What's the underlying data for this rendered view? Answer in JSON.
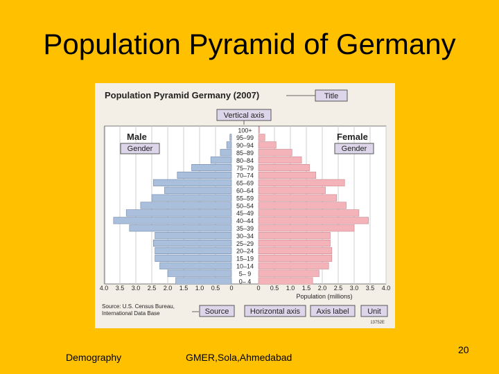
{
  "slide": {
    "title": "Population Pyramid of Germany",
    "footer_left": "Demography",
    "footer_center": "GMER,Sola,Ahmedabad",
    "page_number": "20"
  },
  "colors": {
    "background": "#FFC000",
    "male_bar": "#a9bfdc",
    "female_bar": "#f4b3b8",
    "callout_box": "#ddd6ea"
  },
  "annotations": {
    "title_tag": "Title",
    "vertical_axis": "Vertical axis",
    "gender_left": "Gender",
    "gender_right": "Gender",
    "source_tag": "Source",
    "horizontal_axis": "Horizontal axis",
    "axis_label": "Axis label",
    "unit": "Unit",
    "figure_code": "13752E"
  },
  "chart_data": {
    "type": "bar",
    "title": "Population Pyramid Germany (2007)",
    "left_label": "Male",
    "right_label": "Female",
    "xlabel": "Population (millions)",
    "source": [
      "Source: U.S. Census Bureau,",
      "International Data Base"
    ],
    "xlim": [
      0,
      4
    ],
    "x_ticks_left": [
      "4.0",
      "3.5",
      "3.0",
      "2.5",
      "2.0",
      "1.5",
      "1.0",
      "0.5",
      "0"
    ],
    "x_ticks_right": [
      "0",
      "0.5",
      "1.0",
      "1.5",
      "2.0",
      "2.5",
      "3.0",
      "3.5",
      "4.0"
    ],
    "categories": [
      "100+",
      "95–99",
      "90–94",
      "85–89",
      "80–84",
      "75–79",
      "70–74",
      "65–69",
      "60–64",
      "55–59",
      "50–54",
      "45–49",
      "40–44",
      "35–39",
      "30–34",
      "25–29",
      "20–24",
      "15–19",
      "10–14",
      "5– 9",
      "0– 4"
    ],
    "series": [
      {
        "name": "Male",
        "values": [
          0.0,
          0.05,
          0.15,
          0.35,
          0.65,
          1.25,
          1.7,
          2.45,
          2.1,
          2.5,
          2.85,
          3.3,
          3.7,
          3.2,
          2.4,
          2.45,
          2.4,
          2.4,
          2.25,
          2.0,
          1.75
        ]
      },
      {
        "name": "Female",
        "values": [
          0.03,
          0.2,
          0.55,
          1.05,
          1.35,
          1.6,
          1.8,
          2.7,
          2.1,
          2.45,
          2.75,
          3.15,
          3.45,
          3.0,
          2.25,
          2.25,
          2.3,
          2.3,
          2.2,
          1.9,
          1.7
        ]
      }
    ]
  }
}
